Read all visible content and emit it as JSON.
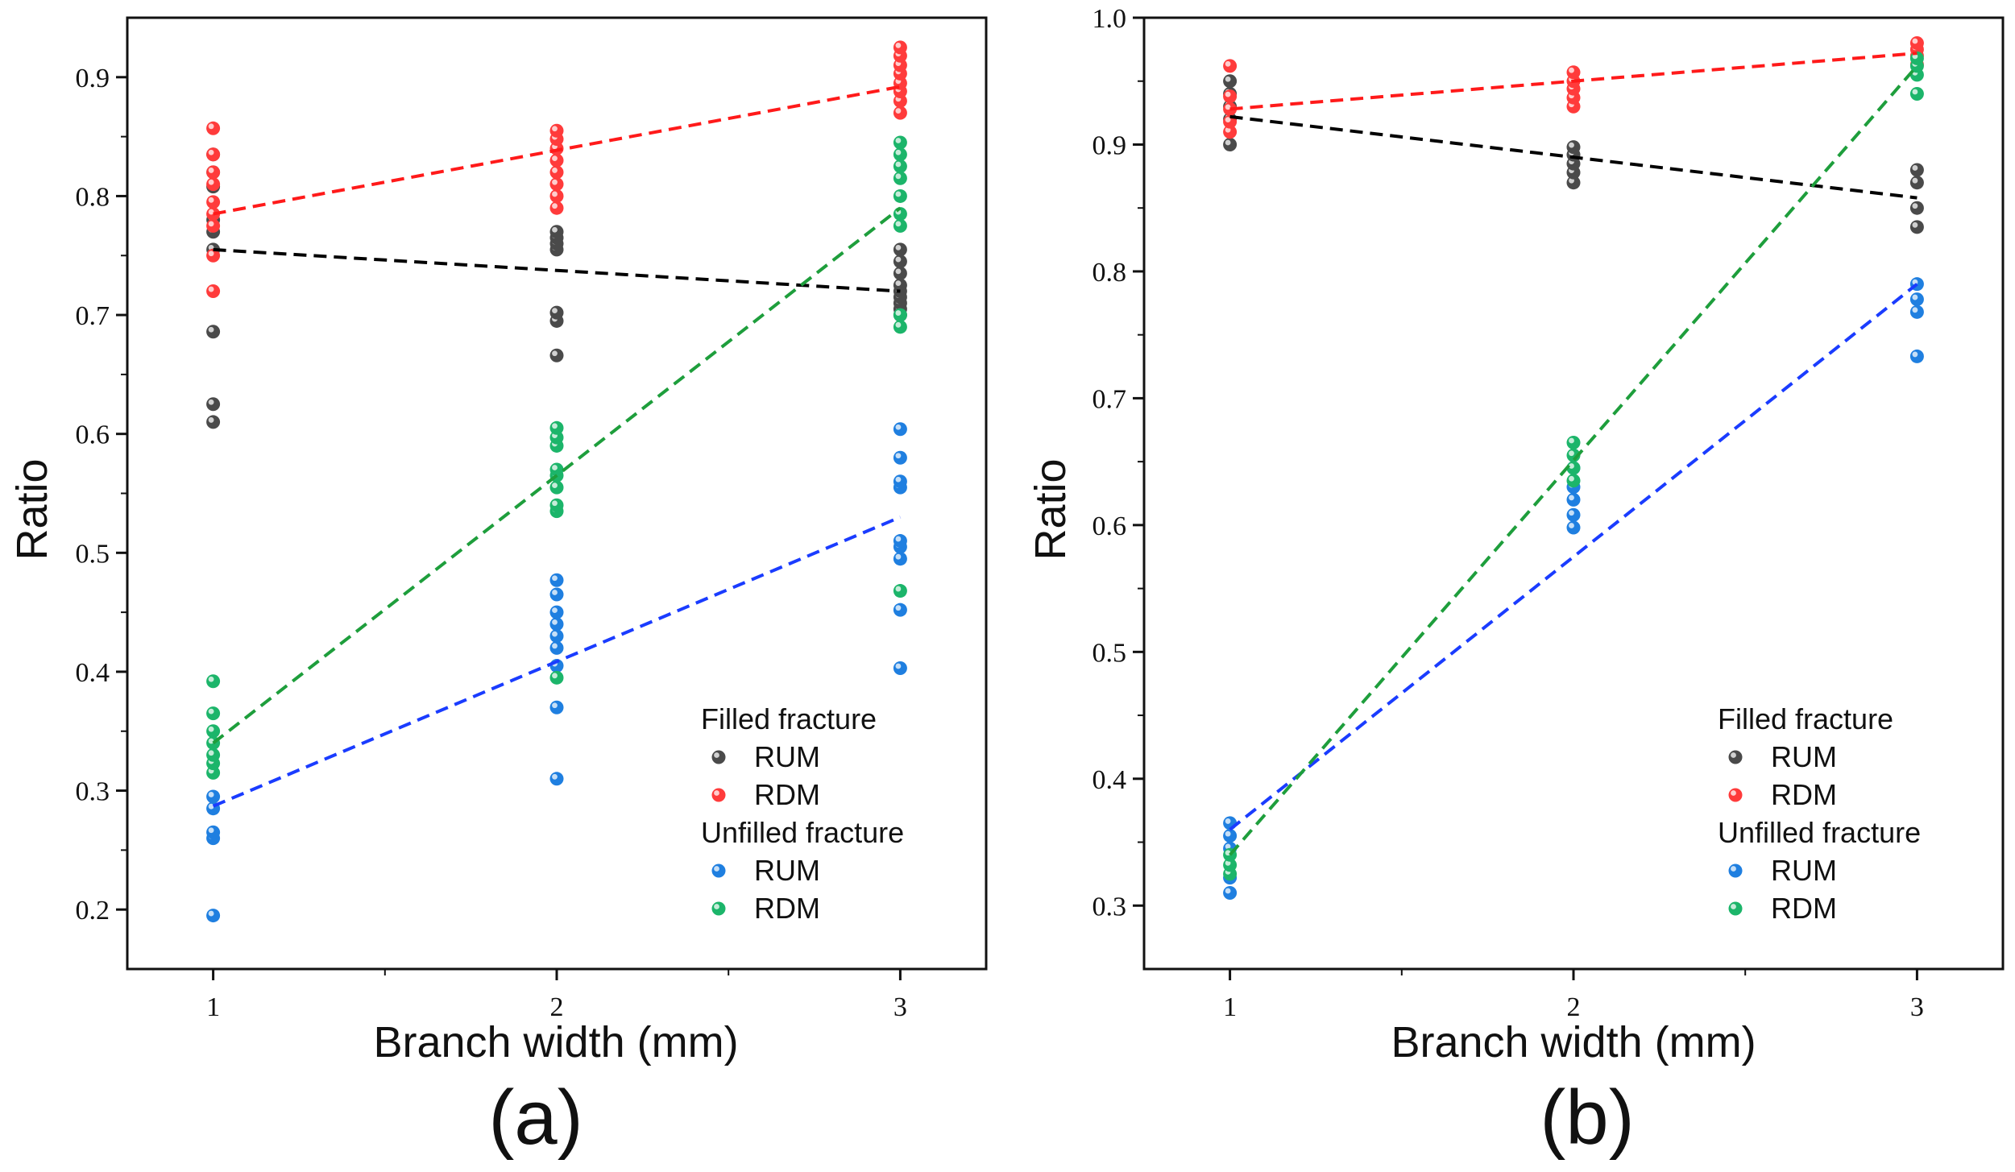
{
  "figure": {
    "colors": {
      "filled_rum": "#4a4a4a",
      "filled_rdm": "#ff3b3b",
      "unfilled_rum": "#1f7fe0",
      "unfilled_rdm": "#1cb56a",
      "fit_filled_rum": "#000000",
      "fit_filled_rdm": "#ff1a1a",
      "fit_unfilled_rum": "#1a3cff",
      "fit_unfilled_rdm": "#1e9e3c"
    }
  },
  "chart_data": [
    {
      "type": "scatter",
      "panel_label": "(a)",
      "xlabel": "Branch width (mm)",
      "ylabel": "Ratio",
      "xlim": [
        0.75,
        3.25
      ],
      "ylim": [
        0.15,
        0.95
      ],
      "xticks": [
        1,
        2,
        3
      ],
      "xtick_labels": [
        "1",
        "2",
        "3"
      ],
      "yticks": [
        0.2,
        0.3,
        0.4,
        0.5,
        0.6,
        0.7,
        0.8,
        0.9
      ],
      "ytick_labels": [
        "0.2",
        "0.3",
        "0.4",
        "0.5",
        "0.6",
        "0.7",
        "0.8",
        "0.9"
      ],
      "legend": {
        "position": "bottom-right",
        "groups": [
          {
            "title": "Filled fracture",
            "entries": [
              "RUM",
              "RDM"
            ]
          },
          {
            "title": "Unfilled fracture",
            "entries": [
              "RUM",
              "RDM"
            ]
          }
        ]
      },
      "series": [
        {
          "name": "RUM",
          "group": "Filled fracture",
          "color_key": "filled_rum",
          "fit_color_key": "fit_filled_rum",
          "points": [
            [
              1,
              0.61
            ],
            [
              1,
              0.625
            ],
            [
              1,
              0.686
            ],
            [
              1,
              0.755
            ],
            [
              1,
              0.77
            ],
            [
              1,
              0.78
            ],
            [
              1,
              0.808
            ],
            [
              1,
              0.82
            ],
            [
              1,
              0.835
            ],
            [
              2,
              0.666
            ],
            [
              2,
              0.695
            ],
            [
              2,
              0.702
            ],
            [
              2,
              0.755
            ],
            [
              2,
              0.76
            ],
            [
              2,
              0.765
            ],
            [
              2,
              0.77
            ],
            [
              3,
              0.7
            ],
            [
              3,
              0.705
            ],
            [
              3,
              0.71
            ],
            [
              3,
              0.715
            ],
            [
              3,
              0.72
            ],
            [
              3,
              0.725
            ],
            [
              3,
              0.735
            ],
            [
              3,
              0.745
            ],
            [
              3,
              0.755
            ]
          ],
          "fit": [
            [
              1,
              0.755
            ],
            [
              3,
              0.72
            ]
          ]
        },
        {
          "name": "RDM",
          "group": "Filled fracture",
          "color_key": "filled_rdm",
          "fit_color_key": "fit_filled_rdm",
          "points": [
            [
              1,
              0.72
            ],
            [
              1,
              0.75
            ],
            [
              1,
              0.775
            ],
            [
              1,
              0.785
            ],
            [
              1,
              0.795
            ],
            [
              1,
              0.81
            ],
            [
              1,
              0.82
            ],
            [
              1,
              0.835
            ],
            [
              1,
              0.857
            ],
            [
              2,
              0.79
            ],
            [
              2,
              0.8
            ],
            [
              2,
              0.81
            ],
            [
              2,
              0.82
            ],
            [
              2,
              0.83
            ],
            [
              2,
              0.84
            ],
            [
              2,
              0.848
            ],
            [
              2,
              0.855
            ],
            [
              3,
              0.87
            ],
            [
              3,
              0.88
            ],
            [
              3,
              0.888
            ],
            [
              3,
              0.895
            ],
            [
              3,
              0.903
            ],
            [
              3,
              0.91
            ],
            [
              3,
              0.918
            ],
            [
              3,
              0.925
            ]
          ],
          "fit": [
            [
              1,
              0.785
            ],
            [
              3,
              0.892
            ]
          ]
        },
        {
          "name": "RUM",
          "group": "Unfilled fracture",
          "color_key": "unfilled_rum",
          "fit_color_key": "fit_unfilled_rum",
          "points": [
            [
              1,
              0.195
            ],
            [
              1,
              0.26
            ],
            [
              1,
              0.265
            ],
            [
              1,
              0.285
            ],
            [
              1,
              0.295
            ],
            [
              2,
              0.31
            ],
            [
              2,
              0.37
            ],
            [
              2,
              0.405
            ],
            [
              2,
              0.42
            ],
            [
              2,
              0.43
            ],
            [
              2,
              0.44
            ],
            [
              2,
              0.45
            ],
            [
              2,
              0.465
            ],
            [
              2,
              0.477
            ],
            [
              3,
              0.403
            ],
            [
              3,
              0.452
            ],
            [
              3,
              0.495
            ],
            [
              3,
              0.505
            ],
            [
              3,
              0.51
            ],
            [
              3,
              0.555
            ],
            [
              3,
              0.56
            ],
            [
              3,
              0.58
            ],
            [
              3,
              0.604
            ]
          ],
          "fit": [
            [
              1,
              0.287
            ],
            [
              3,
              0.53
            ]
          ]
        },
        {
          "name": "RDM",
          "group": "Unfilled fracture",
          "color_key": "unfilled_rdm",
          "fit_color_key": "fit_unfilled_rdm",
          "points": [
            [
              1,
              0.315
            ],
            [
              1,
              0.323
            ],
            [
              1,
              0.33
            ],
            [
              1,
              0.34
            ],
            [
              1,
              0.35
            ],
            [
              1,
              0.365
            ],
            [
              1,
              0.392
            ],
            [
              2,
              0.395
            ],
            [
              2,
              0.535
            ],
            [
              2,
              0.54
            ],
            [
              2,
              0.555
            ],
            [
              2,
              0.565
            ],
            [
              2,
              0.57
            ],
            [
              2,
              0.59
            ],
            [
              2,
              0.597
            ],
            [
              2,
              0.605
            ],
            [
              3,
              0.468
            ],
            [
              3,
              0.69
            ],
            [
              3,
              0.7
            ],
            [
              3,
              0.775
            ],
            [
              3,
              0.785
            ],
            [
              3,
              0.8
            ],
            [
              3,
              0.815
            ],
            [
              3,
              0.825
            ],
            [
              3,
              0.835
            ],
            [
              3,
              0.845
            ]
          ],
          "fit": [
            [
              1,
              0.34
            ],
            [
              3,
              0.79
            ]
          ]
        }
      ]
    },
    {
      "type": "scatter",
      "panel_label": "(b)",
      "xlabel": "Branch width (mm)",
      "ylabel": "Ratio",
      "xlim": [
        0.75,
        3.25
      ],
      "ylim": [
        0.25,
        1.0
      ],
      "xticks": [
        1,
        2,
        3
      ],
      "xtick_labels": [
        "1",
        "2",
        "3"
      ],
      "yticks": [
        0.3,
        0.4,
        0.5,
        0.6,
        0.7,
        0.8,
        0.9,
        1.0
      ],
      "ytick_labels": [
        "0.3",
        "0.4",
        "0.5",
        "0.6",
        "0.7",
        "0.8",
        "0.9",
        "1.0"
      ],
      "legend": {
        "position": "bottom-right",
        "groups": [
          {
            "title": "Filled fracture",
            "entries": [
              "RUM",
              "RDM"
            ]
          },
          {
            "title": "Unfilled fracture",
            "entries": [
              "RUM",
              "RDM"
            ]
          }
        ]
      },
      "series": [
        {
          "name": "RUM",
          "group": "Filled fracture",
          "color_key": "filled_rum",
          "fit_color_key": "fit_filled_rum",
          "points": [
            [
              1,
              0.9
            ],
            [
              1,
              0.92
            ],
            [
              1,
              0.93
            ],
            [
              1,
              0.94
            ],
            [
              1,
              0.95
            ],
            [
              2,
              0.87
            ],
            [
              2,
              0.878
            ],
            [
              2,
              0.885
            ],
            [
              2,
              0.892
            ],
            [
              2,
              0.898
            ],
            [
              3,
              0.835
            ],
            [
              3,
              0.85
            ],
            [
              3,
              0.87
            ],
            [
              3,
              0.88
            ]
          ],
          "fit": [
            [
              1,
              0.922
            ],
            [
              3,
              0.858
            ]
          ]
        },
        {
          "name": "RDM",
          "group": "Filled fracture",
          "color_key": "filled_rdm",
          "fit_color_key": "fit_filled_rdm",
          "points": [
            [
              1,
              0.91
            ],
            [
              1,
              0.918
            ],
            [
              1,
              0.928
            ],
            [
              1,
              0.938
            ],
            [
              1,
              0.962
            ],
            [
              2,
              0.93
            ],
            [
              2,
              0.937
            ],
            [
              2,
              0.944
            ],
            [
              2,
              0.95
            ],
            [
              2,
              0.957
            ],
            [
              3,
              0.963
            ],
            [
              3,
              0.97
            ],
            [
              3,
              0.975
            ],
            [
              3,
              0.98
            ]
          ],
          "fit": [
            [
              1,
              0.928
            ],
            [
              3,
              0.972
            ]
          ]
        },
        {
          "name": "RUM",
          "group": "Unfilled fracture",
          "color_key": "unfilled_rum",
          "fit_color_key": "fit_unfilled_rum",
          "points": [
            [
              1,
              0.31
            ],
            [
              1,
              0.322
            ],
            [
              1,
              0.345
            ],
            [
              1,
              0.355
            ],
            [
              1,
              0.365
            ],
            [
              2,
              0.598
            ],
            [
              2,
              0.608
            ],
            [
              2,
              0.62
            ],
            [
              2,
              0.63
            ],
            [
              2,
              0.645
            ],
            [
              3,
              0.733
            ],
            [
              3,
              0.768
            ],
            [
              3,
              0.778
            ],
            [
              3,
              0.79
            ]
          ],
          "fit": [
            [
              1,
              0.36
            ],
            [
              3,
              0.79
            ]
          ]
        },
        {
          "name": "RDM",
          "group": "Unfilled fracture",
          "color_key": "unfilled_rdm",
          "fit_color_key": "fit_unfilled_rdm",
          "points": [
            [
              1,
              0.325
            ],
            [
              1,
              0.332
            ],
            [
              1,
              0.34
            ],
            [
              2,
              0.635
            ],
            [
              2,
              0.645
            ],
            [
              2,
              0.655
            ],
            [
              2,
              0.665
            ],
            [
              3,
              0.94
            ],
            [
              3,
              0.955
            ],
            [
              3,
              0.962
            ],
            [
              3,
              0.968
            ]
          ],
          "fit": [
            [
              1,
              0.34
            ],
            [
              3,
              0.962
            ]
          ]
        }
      ]
    }
  ]
}
